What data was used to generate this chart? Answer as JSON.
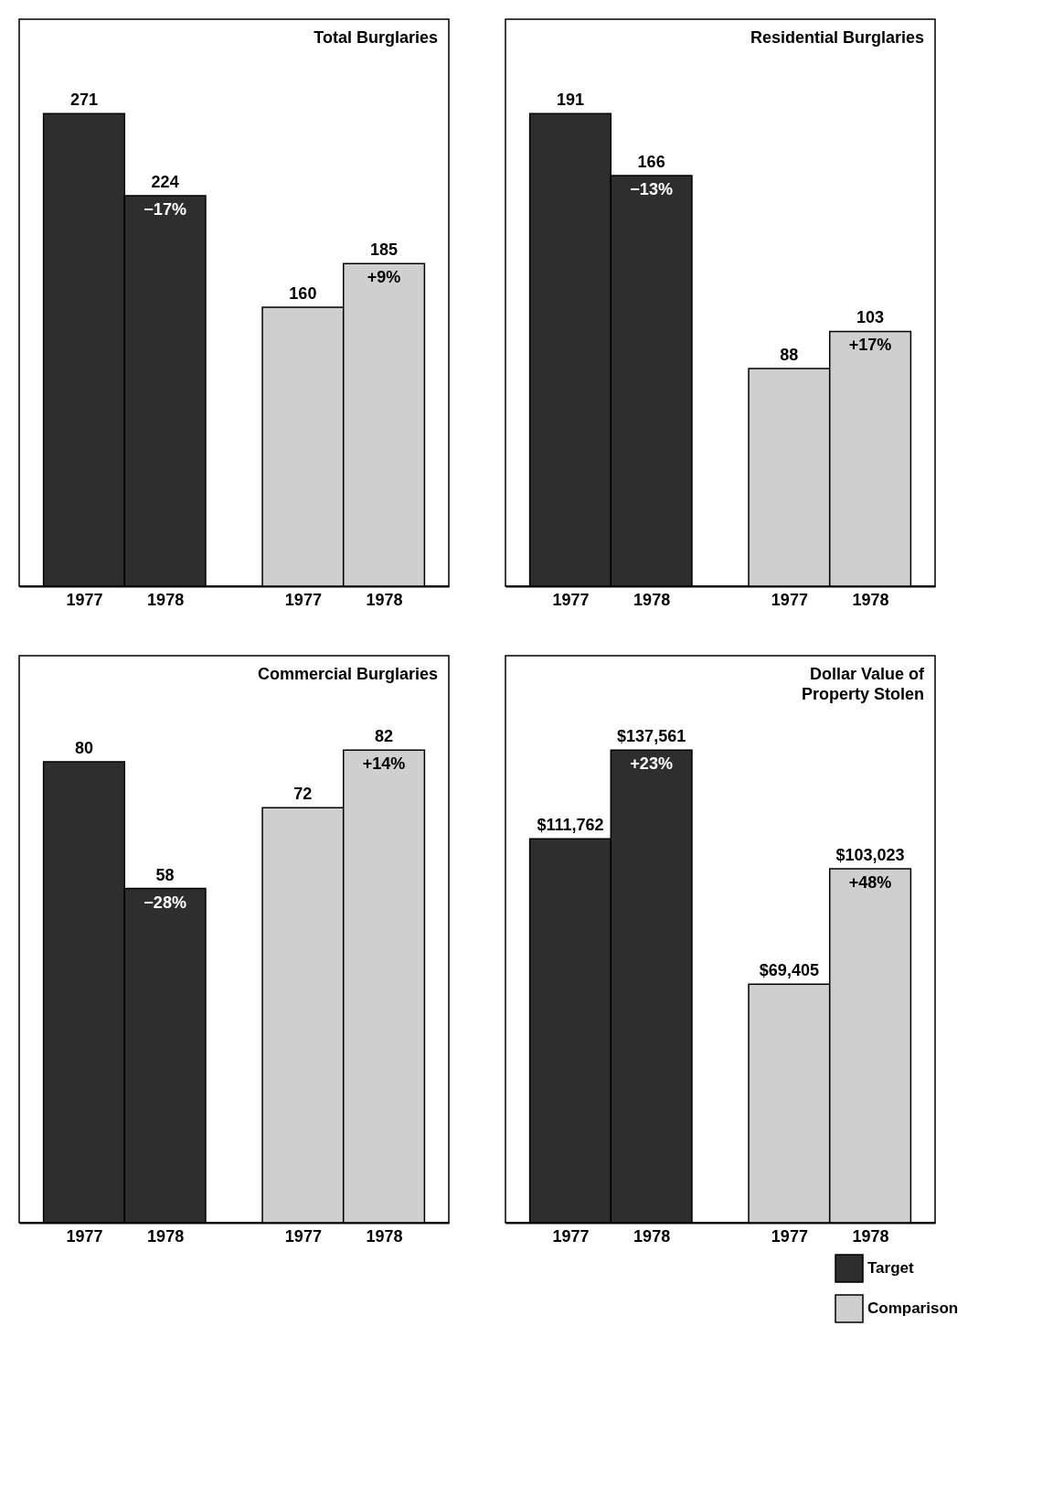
{
  "chart_data": [
    {
      "type": "bar",
      "title": "Total Burglaries",
      "categories": [
        "1977",
        "1978",
        "1977",
        "1978"
      ],
      "series": [
        {
          "color": "#2e2e2e",
          "values": [
            271,
            224,
            null,
            null
          ]
        },
        {
          "color": "#cfcfcf",
          "values": [
            null,
            null,
            160,
            185
          ]
        }
      ],
      "data_labels": true,
      "legend": false,
      "annotations": [
        {
          "text": "−17%",
          "x": "1978",
          "y": 224
        },
        "+9%"
      ]
    },
    {
      "type": "bar",
      "title": "Residential Burglaries",
      "categories": [
        "1977",
        "1978",
        "1977",
        "1978"
      ],
      "series": [
        {
          "color": "#2e2e2e",
          "values": [
            191,
            166,
            null,
            null
          ]
        },
        {
          "color": "#cfcfcf",
          "values": [
            null,
            null,
            88,
            103
          ]
        }
      ],
      "data_labels": true,
      "legend": false,
      "annotations": [
        {
          "text": "−13%",
          "x": "1978",
          "y": 166
        },
        "+17%"
      ]
    },
    {
      "type": "bar",
      "title": "Commercial Burglaries",
      "categories": [
        "1977",
        "1978",
        "1977",
        "1978"
      ],
      "series": [
        {
          "color": "#2e2e2e",
          "values": [
            80,
            58,
            null,
            null
          ]
        },
        {
          "color": "#cfcfcf",
          "values": [
            null,
            null,
            72,
            82
          ]
        }
      ],
      "data_labels": true,
      "legend": false,
      "annotations": [
        {
          "text": "−28%",
          "x": "1978",
          "y": 58
        },
        "+14%"
      ]
    },
    {
      "type": "bar",
      "title": "Dollar Value of Property Stolen",
      "categories": [
        "1977",
        "1978",
        "1977",
        "1978"
      ],
      "series": [
        {
          "name": "Target",
          "color": "#2e2e2e",
          "values": [
            111762,
            137561,
            null,
            null
          ],
          "value_labels": [
            "$111,762",
            "$137,561",
            null,
            null
          ]
        },
        {
          "name": "Comparison",
          "color": "#cfcfcf",
          "values": [
            null,
            null,
            69405,
            103023
          ],
          "value_labels": [
            null,
            null,
            "$69,405",
            "$103,023"
          ]
        }
      ],
      "legend": "bottom right",
      "annotations": [
        {
          "text": "+23%",
          "x": "1978",
          "y": 137561
        },
        "+48%"
      ]
    }
  ]
}
